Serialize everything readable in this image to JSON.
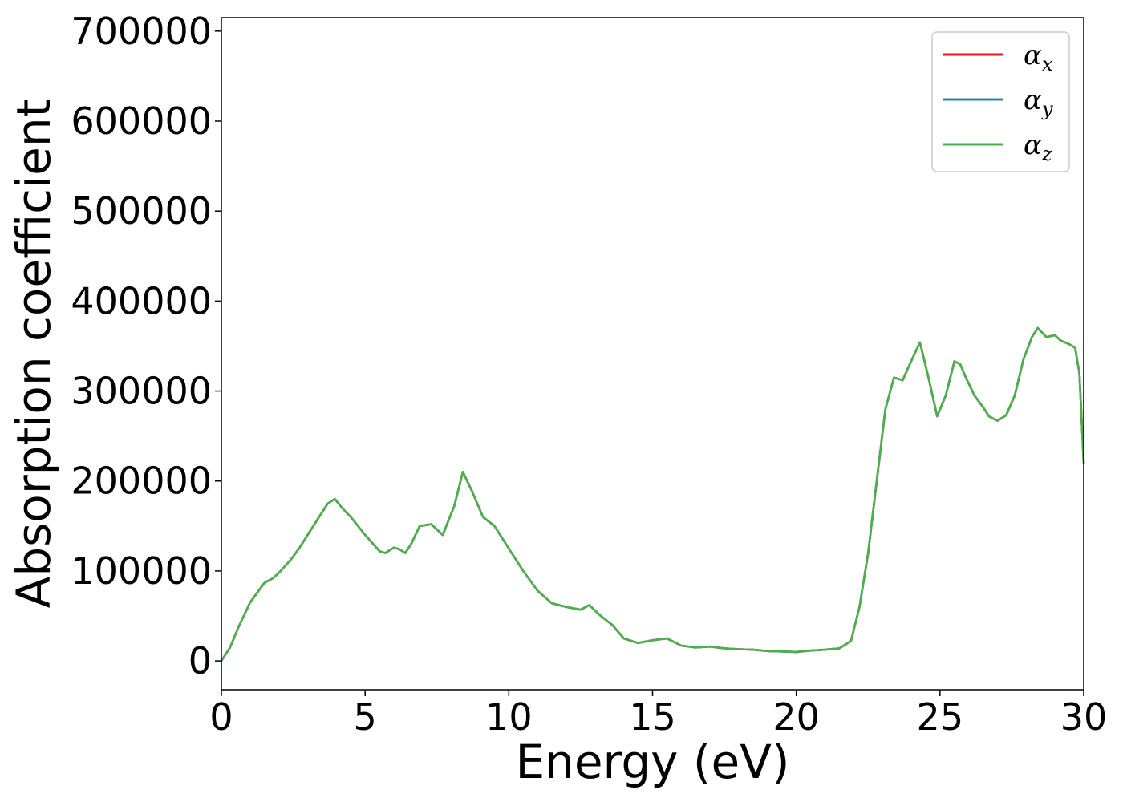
{
  "chart_data": {
    "type": "line",
    "title": "",
    "xlabel": "Energy (eV)",
    "ylabel": "Absorption coefficient",
    "xlim": [
      0,
      30
    ],
    "ylim": [
      -32000,
      715000
    ],
    "xticks": [
      0,
      5,
      10,
      15,
      20,
      25,
      30
    ],
    "yticks": [
      0,
      100000,
      200000,
      300000,
      400000,
      500000,
      600000,
      700000
    ],
    "grid": false,
    "legend_position": "top-right",
    "x": [
      0,
      0.3,
      0.6,
      1.0,
      1.5,
      1.8,
      2.0,
      2.4,
      2.7,
      3.0,
      3.4,
      3.7,
      3.95,
      4.2,
      4.5,
      5.0,
      5.5,
      5.7,
      6.0,
      6.2,
      6.4,
      6.6,
      6.9,
      7.3,
      7.7,
      8.1,
      8.4,
      8.7,
      9.1,
      9.5,
      10.0,
      10.5,
      11.0,
      11.5,
      12.0,
      12.5,
      12.8,
      13.2,
      13.6,
      14.0,
      14.5,
      15.0,
      15.5,
      16.0,
      16.5,
      17.0,
      17.5,
      18.0,
      18.5,
      19.0,
      19.5,
      20.0,
      20.5,
      21.0,
      21.5,
      21.9,
      22.2,
      22.5,
      22.8,
      23.1,
      23.4,
      23.7,
      23.95,
      24.3,
      24.6,
      24.9,
      25.2,
      25.5,
      25.7,
      25.9,
      26.2,
      26.5,
      26.7,
      27.0,
      27.3,
      27.6,
      27.9,
      28.2,
      28.4,
      28.7,
      29.0,
      29.2,
      29.5,
      29.7,
      29.85,
      30.0
    ],
    "series": [
      {
        "name": "α_x",
        "color": "#e41a1c",
        "values": [
          0,
          15000,
          38000,
          65000,
          87000,
          92000,
          98000,
          112000,
          125000,
          140000,
          160000,
          175000,
          180000,
          170000,
          160000,
          140000,
          122000,
          120000,
          126000,
          124000,
          120000,
          130000,
          150000,
          152000,
          140000,
          172000,
          210000,
          190000,
          160000,
          150000,
          125000,
          100000,
          78000,
          64000,
          60000,
          57000,
          62000,
          50000,
          40000,
          25000,
          20000,
          23000,
          25000,
          17000,
          15000,
          16000,
          14000,
          13000,
          12500,
          11000,
          10500,
          10000,
          11500,
          12500,
          14000,
          22000,
          60000,
          120000,
          200000,
          280000,
          315000,
          312000,
          330000,
          354000,
          315000,
          272000,
          295000,
          333000,
          330000,
          315000,
          295000,
          282000,
          272000,
          267000,
          273000,
          295000,
          335000,
          360000,
          370000,
          360000,
          362000,
          356000,
          352000,
          348000,
          320000,
          220000
        ]
      },
      {
        "name": "α_y",
        "color": "#377eb8",
        "values": [
          0,
          15000,
          38000,
          65000,
          87000,
          92000,
          98000,
          112000,
          125000,
          140000,
          160000,
          175000,
          180000,
          170000,
          160000,
          140000,
          122000,
          120000,
          126000,
          124000,
          120000,
          130000,
          150000,
          152000,
          140000,
          172000,
          210000,
          190000,
          160000,
          150000,
          125000,
          100000,
          78000,
          64000,
          60000,
          57000,
          62000,
          50000,
          40000,
          25000,
          20000,
          23000,
          25000,
          17000,
          15000,
          16000,
          14000,
          13000,
          12500,
          11000,
          10500,
          10000,
          11500,
          12500,
          14000,
          22000,
          60000,
          120000,
          200000,
          280000,
          315000,
          312000,
          330000,
          354000,
          315000,
          272000,
          295000,
          333000,
          330000,
          315000,
          295000,
          282000,
          272000,
          267000,
          273000,
          295000,
          335000,
          360000,
          370000,
          360000,
          362000,
          356000,
          352000,
          348000,
          320000,
          220000
        ]
      },
      {
        "name": "α_z",
        "color": "#4daf4a",
        "values": [
          0,
          15000,
          38000,
          65000,
          87000,
          92000,
          98000,
          112000,
          125000,
          140000,
          160000,
          175000,
          180000,
          170000,
          160000,
          140000,
          122000,
          120000,
          126000,
          124000,
          120000,
          130000,
          150000,
          152000,
          140000,
          172000,
          210000,
          190000,
          160000,
          150000,
          125000,
          100000,
          78000,
          64000,
          60000,
          57000,
          62000,
          50000,
          40000,
          25000,
          20000,
          23000,
          25000,
          17000,
          15000,
          16000,
          14000,
          13000,
          12500,
          11000,
          10500,
          10000,
          11500,
          12500,
          14000,
          22000,
          60000,
          120000,
          200000,
          280000,
          315000,
          312000,
          330000,
          354000,
          315000,
          272000,
          295000,
          333000,
          330000,
          315000,
          295000,
          282000,
          272000,
          267000,
          273000,
          295000,
          335000,
          360000,
          370000,
          360000,
          362000,
          356000,
          352000,
          348000,
          320000,
          220000
        ]
      }
    ],
    "legend": [
      {
        "base": "α",
        "sub": "x",
        "color": "#e41a1c"
      },
      {
        "base": "α",
        "sub": "y",
        "color": "#377eb8"
      },
      {
        "base": "α",
        "sub": "z",
        "color": "#4daf4a"
      }
    ]
  }
}
